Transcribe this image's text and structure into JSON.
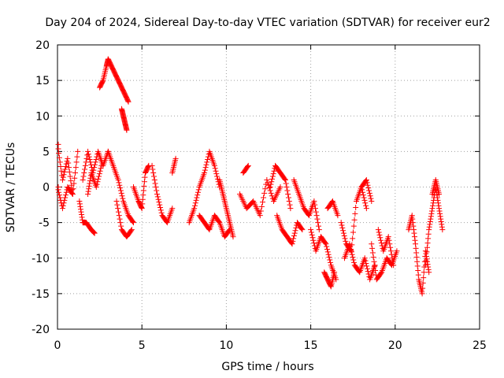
{
  "chart_data": {
    "type": "scatter",
    "title": "Day 204 of 2024, Sidereal Day-to-day VTEC variation (SDTVAR) for receiver eur2",
    "xlabel": "GPS time / hours",
    "ylabel": "SDTVAR / TECUs",
    "xlim": [
      0,
      25
    ],
    "ylim": [
      -20,
      20
    ],
    "xticks": [
      0,
      5,
      10,
      15,
      20,
      25
    ],
    "yticks": [
      -20,
      -15,
      -10,
      -5,
      0,
      5,
      10,
      15,
      20
    ],
    "grid": true,
    "marker": "+",
    "color": "#ff0000",
    "segments": [
      {
        "x": [
          0.0,
          0.3,
          0.6,
          0.9,
          1.2
        ],
        "y": [
          6,
          1,
          4,
          -1,
          5
        ]
      },
      {
        "x": [
          0.0,
          0.3,
          0.6,
          0.9
        ],
        "y": [
          0,
          -3,
          0,
          -1
        ]
      },
      {
        "x": [
          1.3,
          1.5,
          1.7,
          2.0,
          2.2
        ],
        "y": [
          -2,
          -5,
          -5,
          -6,
          -6.5
        ]
      },
      {
        "x": [
          1.5,
          1.8,
          2.1,
          2.4,
          2.7,
          3.0
        ],
        "y": [
          1,
          5,
          2,
          5,
          3,
          5
        ]
      },
      {
        "x": [
          1.8,
          2.0,
          2.3,
          2.6
        ],
        "y": [
          -1,
          2,
          0,
          3
        ]
      },
      {
        "x": [
          2.5,
          2.7,
          2.9,
          3.0,
          3.2,
          3.4,
          3.6,
          3.8,
          4.0,
          4.2
        ],
        "y": [
          14,
          15,
          17,
          18,
          17,
          16,
          15,
          14,
          13,
          12
        ]
      },
      {
        "x": [
          3.8,
          3.9,
          4.0,
          4.1
        ],
        "y": [
          11,
          10,
          9,
          8
        ]
      },
      {
        "x": [
          3.0,
          3.3,
          3.6,
          3.9,
          4.2,
          4.5
        ],
        "y": [
          5,
          3,
          1,
          -2,
          -4,
          -5
        ]
      },
      {
        "x": [
          3.5,
          3.8,
          4.1,
          4.4
        ],
        "y": [
          -2,
          -6,
          -7,
          -6
        ]
      },
      {
        "x": [
          4.5,
          4.8,
          5.0,
          5.2,
          5.4
        ],
        "y": [
          0,
          -2,
          -3,
          2,
          3
        ]
      },
      {
        "x": [
          5.6,
          5.9,
          6.2,
          6.5,
          6.8
        ],
        "y": [
          3,
          -1,
          -4,
          -5,
          -3
        ]
      },
      {
        "x": [
          6.8,
          7.0
        ],
        "y": [
          2,
          4
        ]
      },
      {
        "x": [
          7.8,
          8.1,
          8.4,
          8.7,
          9.0,
          9.3,
          9.6
        ],
        "y": [
          -5,
          -3,
          0,
          2,
          5,
          3,
          0
        ]
      },
      {
        "x": [
          8.4,
          8.7,
          9.0,
          9.3,
          9.6,
          9.9,
          10.2
        ],
        "y": [
          -4,
          -5,
          -6,
          -4,
          -5,
          -7,
          -6
        ]
      },
      {
        "x": [
          9.6,
          9.8,
          10.0,
          10.2,
          10.4
        ],
        "y": [
          1,
          -1,
          -3,
          -5,
          -7
        ]
      },
      {
        "x": [
          10.8,
          11.2,
          11.6,
          12.0,
          12.4,
          12.8,
          13.2
        ],
        "y": [
          -1,
          -3,
          -2,
          -4,
          1,
          -2,
          0
        ]
      },
      {
        "x": [
          11.0,
          11.3
        ],
        "y": [
          2,
          3
        ]
      },
      {
        "x": [
          12.6,
          12.9,
          13.2,
          13.5,
          13.8
        ],
        "y": [
          0,
          3,
          2,
          1,
          -3
        ]
      },
      {
        "x": [
          13.0,
          13.3,
          13.6,
          13.9,
          14.2,
          14.5
        ],
        "y": [
          -4,
          -6,
          -7,
          -8,
          -5,
          -6
        ]
      },
      {
        "x": [
          14.0,
          14.3,
          14.6,
          14.9,
          15.2,
          15.5
        ],
        "y": [
          1,
          -1,
          -3,
          -4,
          -2,
          -6
        ]
      },
      {
        "x": [
          15.0,
          15.3,
          15.6,
          15.9,
          16.2,
          16.5
        ],
        "y": [
          -6,
          -9,
          -7,
          -8,
          -11,
          -13
        ]
      },
      {
        "x": [
          15.8,
          16.0,
          16.2,
          16.4
        ],
        "y": [
          -12,
          -13,
          -14,
          -12
        ]
      },
      {
        "x": [
          16.0,
          16.3,
          16.6
        ],
        "y": [
          -3,
          -2,
          -4
        ]
      },
      {
        "x": [
          16.8,
          17.1,
          17.4,
          17.7,
          18.0,
          18.3
        ],
        "y": [
          -5,
          -8,
          -9,
          -2,
          0,
          -3
        ]
      },
      {
        "x": [
          17.0,
          17.3,
          17.6,
          17.9,
          18.2,
          18.5,
          18.8
        ],
        "y": [
          -10,
          -8,
          -11,
          -12,
          -10,
          -13,
          -11
        ]
      },
      {
        "x": [
          18.0,
          18.3,
          18.6
        ],
        "y": [
          0,
          1,
          -2
        ]
      },
      {
        "x": [
          18.6,
          18.9,
          19.2,
          19.5,
          19.8,
          20.1
        ],
        "y": [
          -8,
          -13,
          -12,
          -10,
          -11,
          -9
        ]
      },
      {
        "x": [
          19.0,
          19.3,
          19.6,
          19.9
        ],
        "y": [
          -6,
          -9,
          -7,
          -11
        ]
      },
      {
        "x": [
          20.8,
          21.0,
          21.2,
          21.4,
          21.6,
          21.8,
          22.0
        ],
        "y": [
          -6,
          -4,
          -8,
          -13,
          -15,
          -9,
          -12
        ]
      },
      {
        "x": [
          21.8,
          22.0,
          22.2,
          22.4,
          22.6,
          22.8
        ],
        "y": [
          -11,
          -6,
          -3,
          0,
          -3,
          -6
        ]
      },
      {
        "x": [
          22.2,
          22.4,
          22.6
        ],
        "y": [
          -1,
          1,
          -1
        ]
      }
    ]
  }
}
